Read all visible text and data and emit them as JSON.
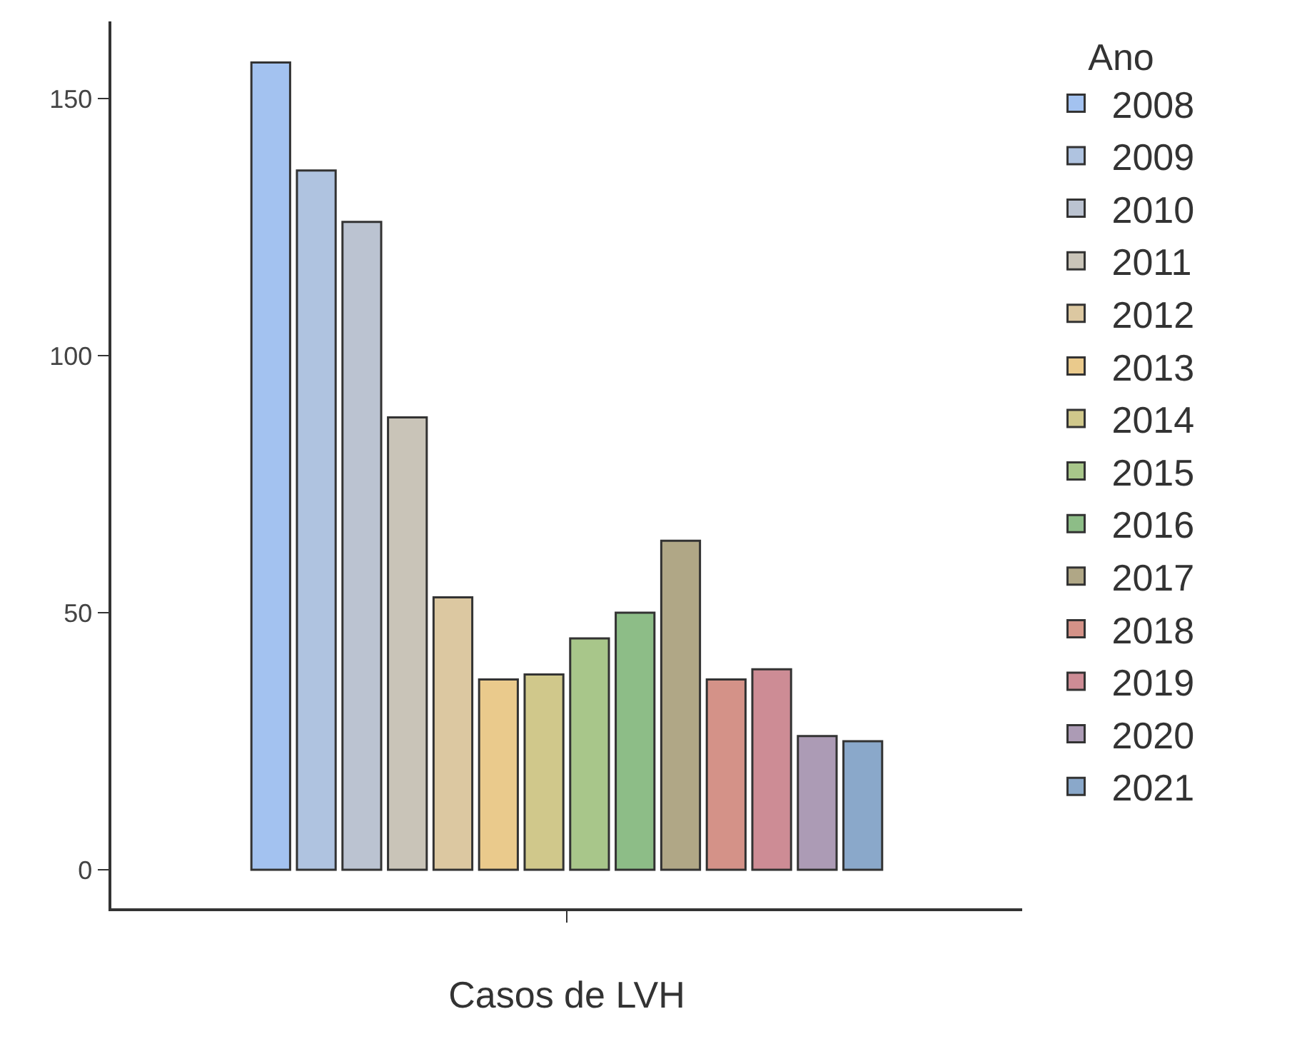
{
  "chart_data": {
    "type": "bar",
    "xlabel": "Casos de LVH",
    "legend_title": "Ano",
    "categories": [
      null
    ],
    "ylim": [
      -7.5,
      165
    ],
    "yticks": [
      0,
      50,
      100,
      150
    ],
    "grid": false,
    "legend": "right",
    "series": [
      {
        "name": "2008",
        "color": "#a3c2f0",
        "values": [
          157
        ]
      },
      {
        "name": "2009",
        "color": "#afc3e0",
        "values": [
          136
        ]
      },
      {
        "name": "2010",
        "color": "#bbc3d1",
        "values": [
          126
        ]
      },
      {
        "name": "2011",
        "color": "#c9c4b8",
        "values": [
          88
        ]
      },
      {
        "name": "2012",
        "color": "#dcc8a1",
        "values": [
          53
        ]
      },
      {
        "name": "2013",
        "color": "#eaca8c",
        "values": [
          37
        ]
      },
      {
        "name": "2014",
        "color": "#d0c88b",
        "values": [
          38
        ]
      },
      {
        "name": "2015",
        "color": "#a8c68a",
        "values": [
          45
        ]
      },
      {
        "name": "2016",
        "color": "#8dbd87",
        "values": [
          50
        ]
      },
      {
        "name": "2017",
        "color": "#b0a786",
        "values": [
          64
        ]
      },
      {
        "name": "2018",
        "color": "#d49288",
        "values": [
          37
        ]
      },
      {
        "name": "2019",
        "color": "#cd8c95",
        "values": [
          39
        ]
      },
      {
        "name": "2020",
        "color": "#ac9bb5",
        "values": [
          26
        ]
      },
      {
        "name": "2021",
        "color": "#8aa8ca",
        "values": [
          25
        ]
      }
    ]
  }
}
